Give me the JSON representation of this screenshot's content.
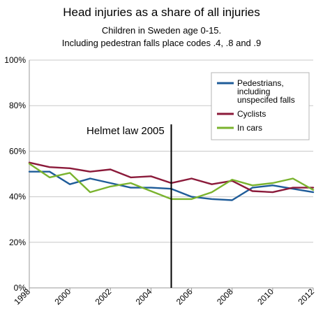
{
  "chart_data": {
    "type": "line",
    "title": "Head injuries as a share of all injuries",
    "subtitle_lines": [
      "Children in Sweden age 0-15.",
      "Including pedestran falls place codes .4, .8 and .9"
    ],
    "x": [
      1998,
      1999,
      2000,
      2001,
      2002,
      2003,
      2004,
      2005,
      2006,
      2007,
      2008,
      2009,
      2010,
      2011,
      2012
    ],
    "xlim": [
      1998,
      2012
    ],
    "x_ticks": [
      "1998",
      "2000",
      "2002",
      "2004",
      "2006",
      "2008",
      "2010",
      "2012"
    ],
    "ylim": [
      0,
      100
    ],
    "y_ticks": [
      "0%",
      "20%",
      "40%",
      "60%",
      "80%",
      "100%"
    ],
    "grid": true,
    "legend_position": "top-right",
    "annotation": {
      "text": "Helmet law 2005",
      "x": 2005
    },
    "series": [
      {
        "name": "Pedestrians, including unspecifed falls",
        "name_lines": [
          "Pedestrians,",
          "including",
          "unspecifed falls"
        ],
        "color": "#1f5c99",
        "values": [
          51,
          51,
          45.5,
          48,
          46,
          44,
          44,
          43.5,
          40,
          39,
          38.5,
          44,
          45,
          43.5,
          42
        ]
      },
      {
        "name": "Cyclists",
        "name_lines": [
          "Cyclists"
        ],
        "color": "#8b1a3a",
        "values": [
          55,
          53,
          52.5,
          51,
          52,
          48.5,
          49,
          46,
          48,
          45.5,
          47,
          42.5,
          42,
          44,
          44
        ]
      },
      {
        "name": "In cars",
        "name_lines": [
          "In cars"
        ],
        "color": "#7ab32e",
        "values": [
          54.5,
          48.5,
          50.5,
          42,
          44.5,
          46,
          42.5,
          39,
          39,
          42,
          47.5,
          45,
          46,
          48,
          43
        ]
      }
    ]
  }
}
